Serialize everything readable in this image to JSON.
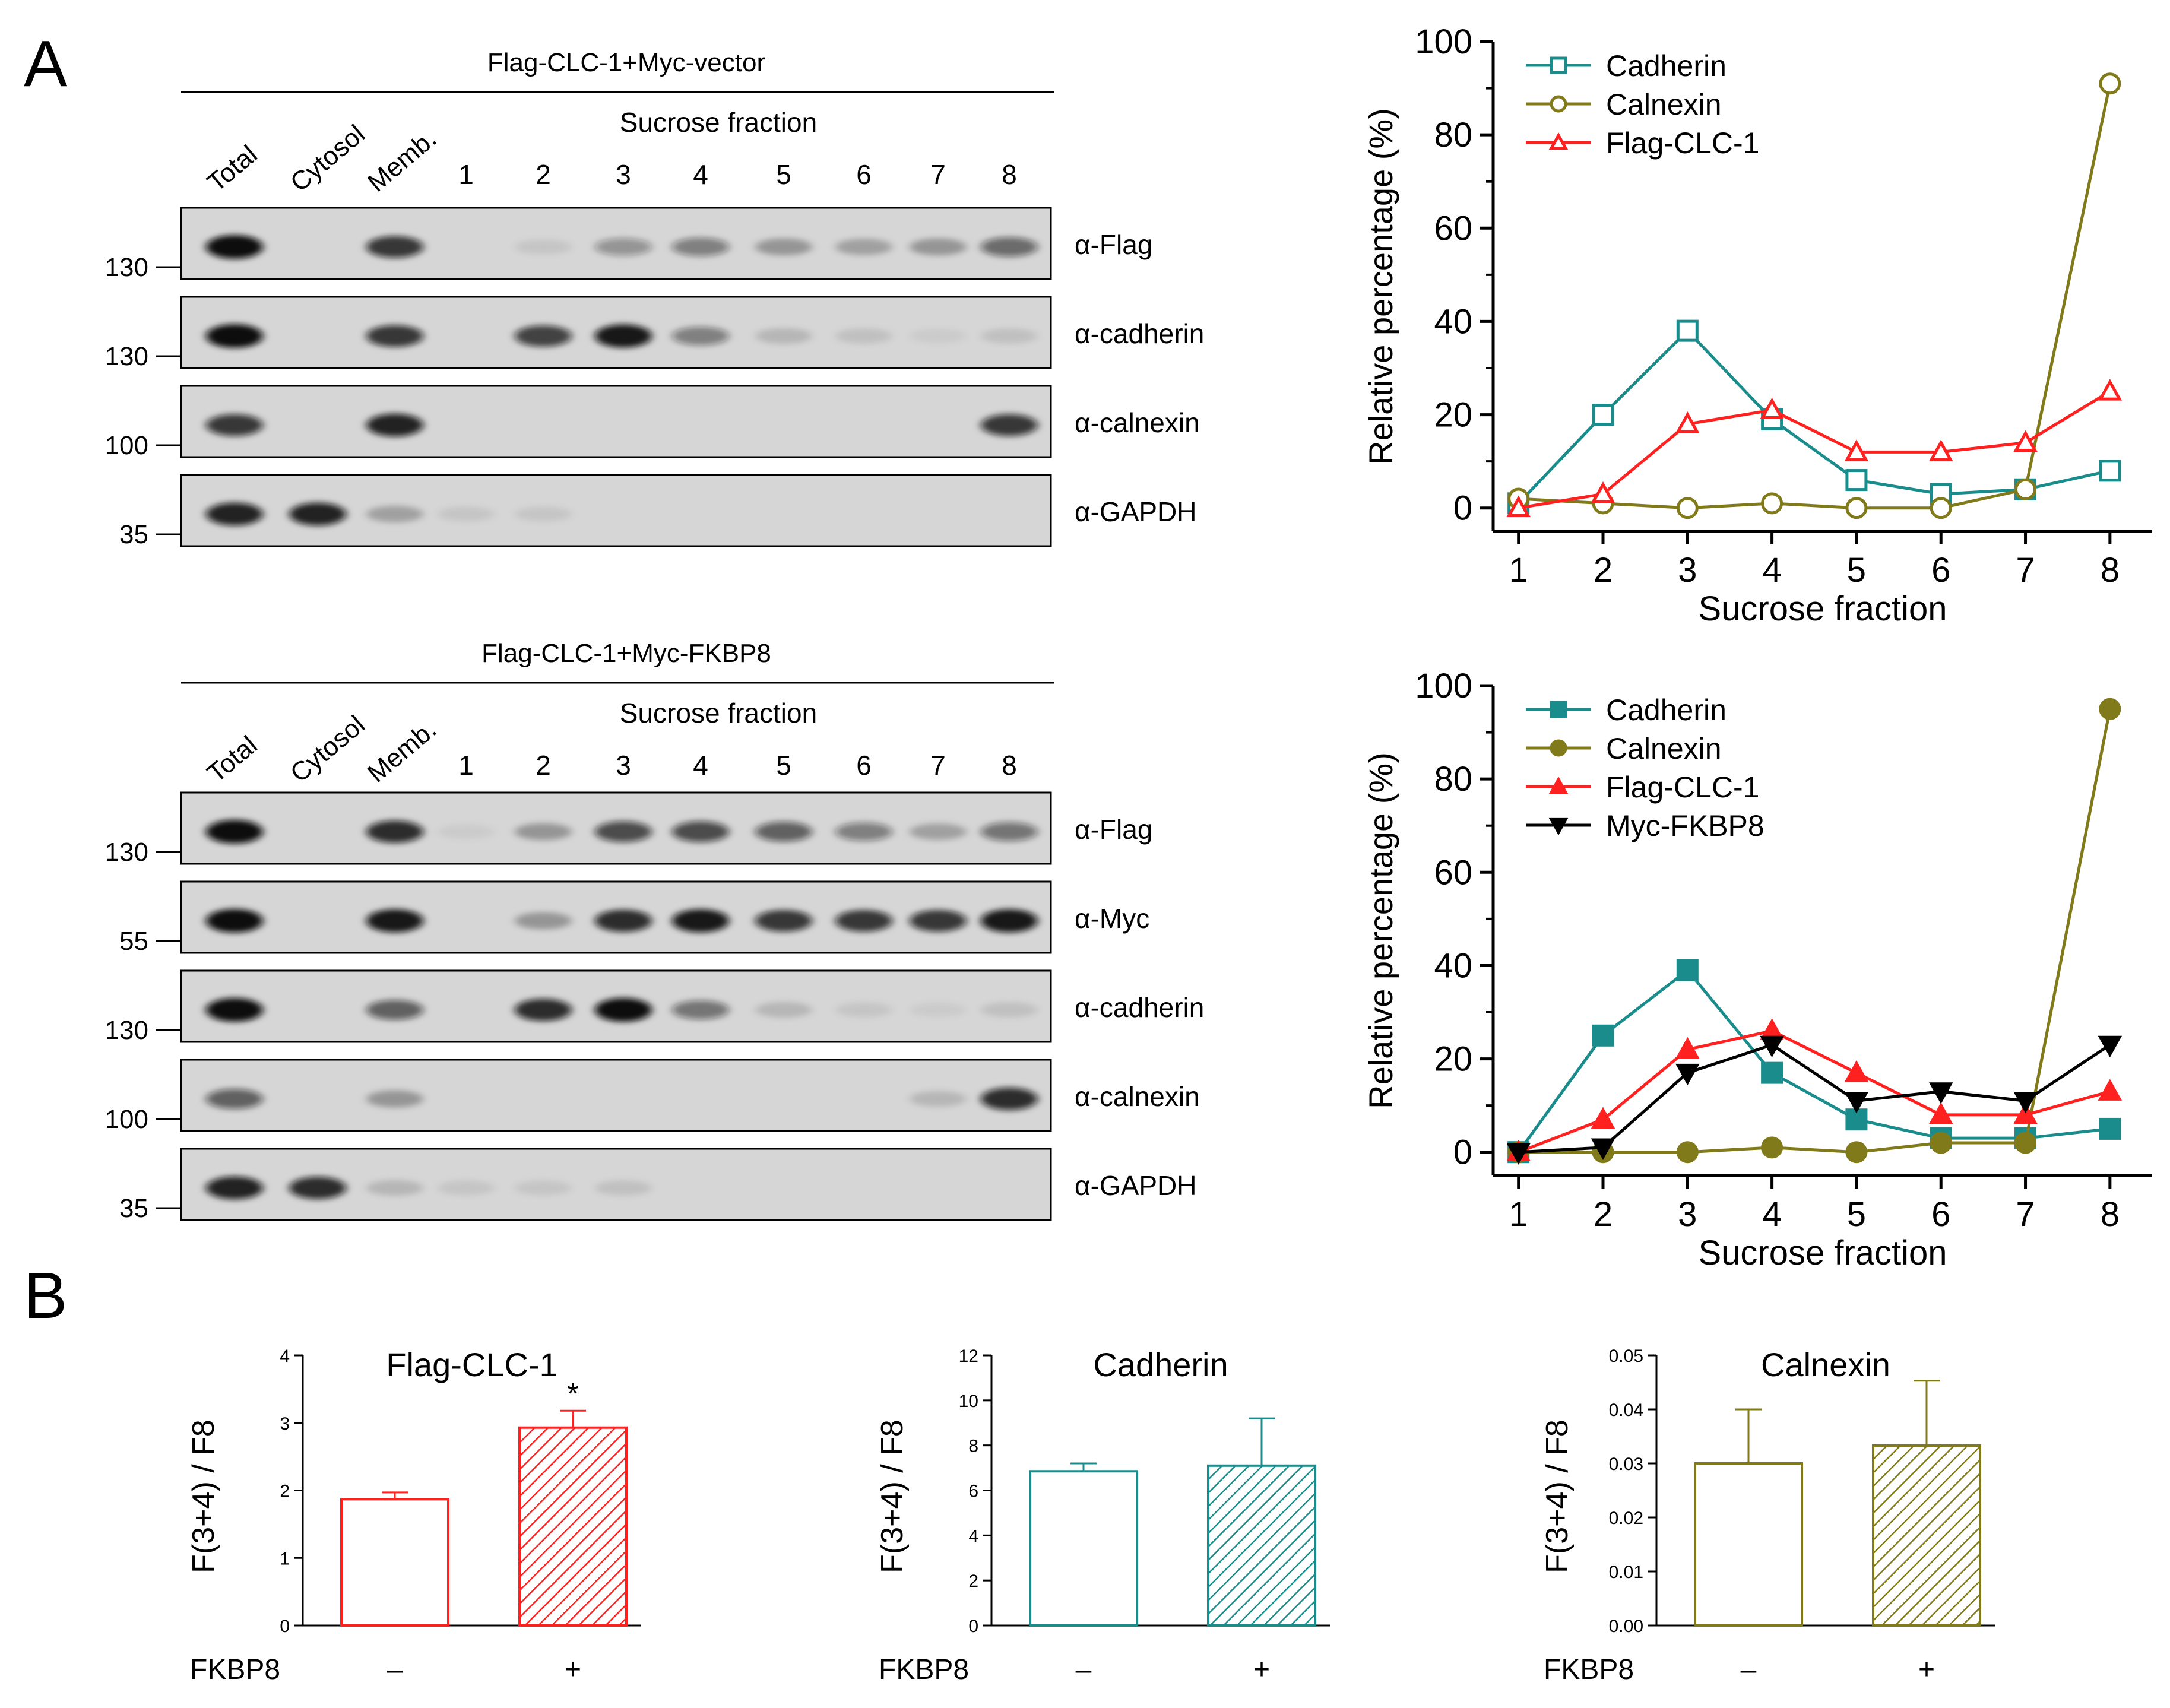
{
  "panel_labels": {
    "a": "A",
    "b": "B"
  },
  "colors": {
    "cadherin": "#1b8c8c",
    "calnexin": "#807a1a",
    "flag_clc": "#ff2020",
    "myc_fkbp8": "#000000",
    "blot_bg": "#d6d6d6",
    "band": "#111111"
  },
  "blots": [
    {
      "title": "Flag-CLC-1+Myc-vector",
      "lane_labels": [
        "Total",
        "Cytosol",
        "Memb."
      ],
      "sucrose_label": "Sucrose fraction",
      "fraction_labels": [
        "1",
        "2",
        "3",
        "4",
        "5",
        "6",
        "7",
        "8"
      ],
      "strips": [
        {
          "antibody": "α-Flag",
          "marker": "130",
          "bands": [
            1,
            0,
            0.8,
            0,
            0.08,
            0.35,
            0.45,
            0.3,
            0.25,
            0.3,
            0.55
          ]
        },
        {
          "antibody": "α-cadherin",
          "marker": "130",
          "bands": [
            1,
            0,
            0.8,
            0,
            0.75,
            0.95,
            0.45,
            0.15,
            0.1,
            0.05,
            0.1
          ]
        },
        {
          "antibody": "α-calnexin",
          "marker": "100",
          "bands": [
            0.8,
            0,
            0.9,
            0,
            0,
            0,
            0,
            0,
            0,
            0,
            0.8
          ]
        },
        {
          "antibody": "α-GAPDH",
          "marker": "35",
          "bands": [
            0.9,
            0.9,
            0.25,
            0.08,
            0.08,
            0,
            0,
            0,
            0,
            0,
            0
          ]
        }
      ]
    },
    {
      "title": "Flag-CLC-1+Myc-FKBP8",
      "lane_labels": [
        "Total",
        "Cytosol",
        "Memb."
      ],
      "sucrose_label": "Sucrose fraction",
      "fraction_labels": [
        "1",
        "2",
        "3",
        "4",
        "5",
        "6",
        "7",
        "8"
      ],
      "strips": [
        {
          "antibody": "α-Flag",
          "marker": "130",
          "bands": [
            1,
            0,
            0.85,
            0.05,
            0.3,
            0.7,
            0.7,
            0.6,
            0.45,
            0.25,
            0.5
          ]
        },
        {
          "antibody": "α-Myc",
          "marker": "55",
          "bands": [
            1,
            0,
            0.95,
            0,
            0.3,
            0.85,
            0.95,
            0.8,
            0.8,
            0.8,
            0.95
          ]
        },
        {
          "antibody": "α-cadherin",
          "marker": "130",
          "bands": [
            1,
            0,
            0.6,
            0,
            0.85,
            1,
            0.5,
            0.15,
            0.08,
            0.05,
            0.1
          ]
        },
        {
          "antibody": "α-calnexin",
          "marker": "100",
          "bands": [
            0.6,
            0,
            0.3,
            0,
            0,
            0,
            0,
            0,
            0,
            0.15,
            0.85
          ]
        },
        {
          "antibody": "α-GAPDH",
          "marker": "35",
          "bands": [
            0.9,
            0.85,
            0.15,
            0.08,
            0.08,
            0.1,
            0,
            0,
            0,
            0,
            0
          ]
        }
      ]
    }
  ],
  "chart_data": [
    {
      "type": "line",
      "xlabel": "Sucrose fraction",
      "ylabel": "Relative percentage (%)",
      "x": [
        1,
        2,
        3,
        4,
        5,
        6,
        7,
        8
      ],
      "xlim": [
        0.7,
        8.5
      ],
      "ylim": [
        -5,
        100
      ],
      "yticks": [
        0,
        20,
        40,
        60,
        80,
        100
      ],
      "legend_position": "top-left",
      "series": [
        {
          "name": "Cadherin",
          "marker": "square-open",
          "color": "#1b8c8c",
          "values": [
            1,
            20,
            38,
            19,
            6,
            3,
            4,
            8
          ]
        },
        {
          "name": "Calnexin",
          "marker": "circle-open",
          "color": "#807a1a",
          "values": [
            2,
            1,
            0,
            1,
            0,
            0,
            4,
            91
          ]
        },
        {
          "name": "Flag-CLC-1",
          "marker": "triangle-open",
          "color": "#ff2020",
          "values": [
            0,
            3,
            18,
            21,
            12,
            12,
            14,
            25
          ]
        }
      ]
    },
    {
      "type": "line",
      "xlabel": "Sucrose fraction",
      "ylabel": "Relative percentage (%)",
      "x": [
        1,
        2,
        3,
        4,
        5,
        6,
        7,
        8
      ],
      "xlim": [
        0.7,
        8.5
      ],
      "ylim": [
        -5,
        100
      ],
      "yticks": [
        0,
        20,
        40,
        60,
        80,
        100
      ],
      "legend_position": "top-left",
      "series": [
        {
          "name": "Cadherin",
          "marker": "square-filled",
          "color": "#1b8c8c",
          "values": [
            0,
            25,
            39,
            17,
            7,
            3,
            3,
            5
          ]
        },
        {
          "name": "Calnexin",
          "marker": "circle-filled",
          "color": "#807a1a",
          "values": [
            0,
            0,
            0,
            1,
            0,
            2,
            2,
            95
          ]
        },
        {
          "name": "Flag-CLC-1",
          "marker": "triangle-filled",
          "color": "#ff2020",
          "values": [
            0,
            7,
            22,
            26,
            17,
            8,
            8,
            13
          ]
        },
        {
          "name": "Myc-FKBP8",
          "marker": "triangle-down-filled",
          "color": "#000000",
          "values": [
            0,
            1,
            17,
            23,
            11,
            13,
            11,
            23
          ]
        }
      ]
    },
    {
      "type": "bar",
      "title": "Flag-CLC-1",
      "ylabel": "F(3+4) / F8",
      "xlabel": "FKBP8",
      "categories": [
        "–",
        "+"
      ],
      "values": [
        1.87,
        2.93
      ],
      "errors": [
        0.1,
        0.25
      ],
      "ylim": [
        0,
        4
      ],
      "yticks": [
        "0",
        "1",
        "2",
        "3",
        "4"
      ],
      "color": "#ff2020",
      "significance": [
        "",
        "*"
      ]
    },
    {
      "type": "bar",
      "title": "Cadherin",
      "ylabel": "F(3+4) / F8",
      "xlabel": "FKBP8",
      "categories": [
        "–",
        "+"
      ],
      "values": [
        6.85,
        7.1
      ],
      "errors": [
        0.35,
        2.1
      ],
      "ylim": [
        0,
        12
      ],
      "yticks": [
        "0",
        "2",
        "4",
        "6",
        "8",
        "10",
        "12"
      ],
      "color": "#1b8c8c",
      "significance": [
        "",
        ""
      ]
    },
    {
      "type": "bar",
      "title": "Calnexin",
      "ylabel": "F(3+4) / F8",
      "xlabel": "FKBP8",
      "categories": [
        "–",
        "+"
      ],
      "values": [
        0.03,
        0.0333
      ],
      "errors": [
        0.01,
        0.012
      ],
      "ylim": [
        0,
        0.05
      ],
      "yticks": [
        "0.00",
        "0.01",
        "0.02",
        "0.03",
        "0.04",
        "0.05"
      ],
      "color": "#807a1a",
      "significance": [
        "",
        ""
      ]
    }
  ]
}
